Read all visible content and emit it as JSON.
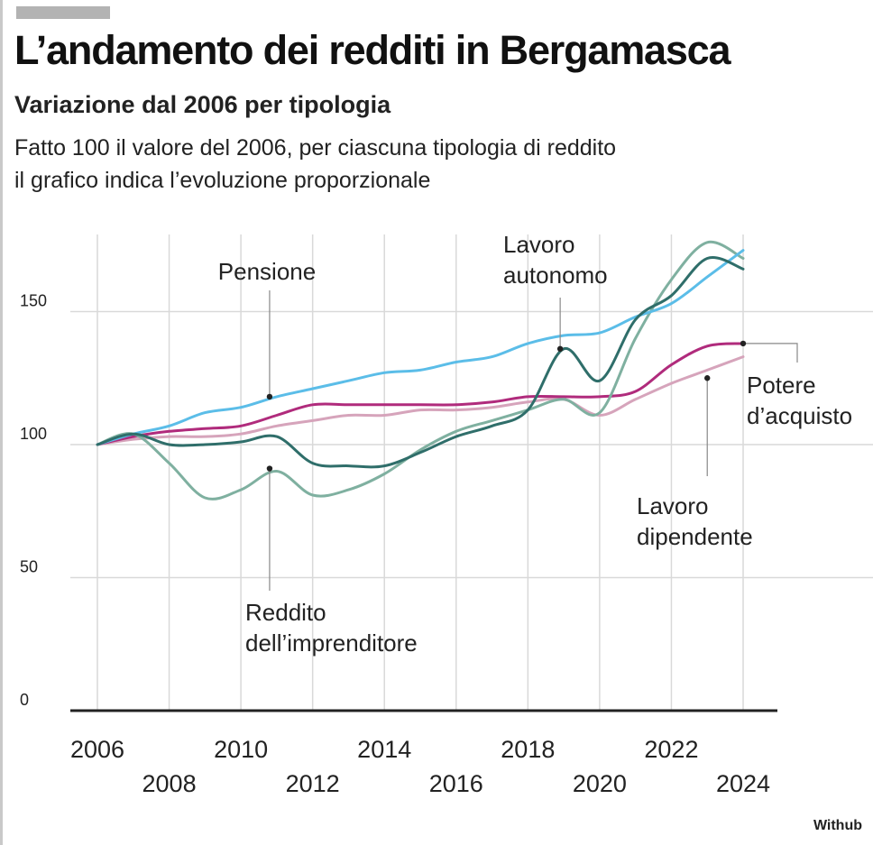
{
  "header": {
    "title": "L’andamento dei redditi in Bergamasca",
    "subtitle": "Variazione dal 2006 per tipologia",
    "note_line1": "Fatto 100 il valore del 2006, per ciascuna tipologia di reddito",
    "note_line2": "il grafico indica l’evoluzione proporzionale"
  },
  "credit": "Withub",
  "colors": {
    "pensione": "#5bbde8",
    "lavoro_autonomo": "#2f6e6a",
    "reddito_imprenditore": "#7fb0a0",
    "potere_acquisto": "#b02b7c",
    "lavoro_dipendente": "#d6a4bb",
    "grid": "#d9d9d9",
    "axis": "#222222"
  },
  "chart_data": {
    "type": "line",
    "title": "L’andamento dei redditi in Bergamasca",
    "subtitle": "Variazione dal 2006 per tipologia",
    "xlabel": "",
    "ylabel": "",
    "x_ticks": [
      2006,
      2008,
      2010,
      2012,
      2014,
      2016,
      2018,
      2020,
      2022,
      2024
    ],
    "y_ticks": [
      0,
      50,
      100,
      150
    ],
    "xlim": [
      2006,
      2024
    ],
    "ylim": [
      0,
      175
    ],
    "grid": true,
    "series": [
      {
        "key": "pensione",
        "x": [
          2006,
          2007,
          2008,
          2009,
          2010,
          2011,
          2012,
          2013,
          2014,
          2015,
          2016,
          2017,
          2018,
          2019,
          2020,
          2021,
          2022,
          2023,
          2024
        ],
        "values": [
          100,
          104,
          107,
          112,
          114,
          118,
          121,
          124,
          127,
          128,
          131,
          133,
          138,
          141,
          142,
          148,
          153,
          163,
          173
        ]
      },
      {
        "key": "lavoro_autonomo",
        "x": [
          2006,
          2007,
          2008,
          2009,
          2010,
          2011,
          2012,
          2013,
          2014,
          2015,
          2016,
          2017,
          2018,
          2019,
          2020,
          2021,
          2022,
          2023,
          2024
        ],
        "values": [
          100,
          104,
          100,
          100,
          101,
          103,
          93,
          92,
          92,
          97,
          103,
          107,
          113,
          136,
          124,
          147,
          156,
          170,
          166
        ]
      },
      {
        "key": "reddito_imprenditore",
        "x": [
          2006,
          2007,
          2008,
          2009,
          2010,
          2011,
          2012,
          2013,
          2014,
          2015,
          2016,
          2017,
          2018,
          2019,
          2020,
          2021,
          2022,
          2023,
          2024
        ],
        "values": [
          100,
          104,
          93,
          80,
          83,
          90,
          81,
          83,
          89,
          98,
          105,
          109,
          113,
          117,
          112,
          140,
          162,
          176,
          170
        ]
      },
      {
        "key": "potere_acquisto",
        "x": [
          2006,
          2007,
          2008,
          2009,
          2010,
          2011,
          2012,
          2013,
          2014,
          2015,
          2016,
          2017,
          2018,
          2019,
          2020,
          2021,
          2022,
          2023,
          2024
        ],
        "values": [
          100,
          103,
          105,
          106,
          107,
          111,
          115,
          115,
          115,
          115,
          115,
          116,
          118,
          118,
          118,
          120,
          130,
          137,
          138
        ]
      },
      {
        "key": "lavoro_dipendente",
        "x": [
          2006,
          2007,
          2008,
          2009,
          2010,
          2011,
          2012,
          2013,
          2014,
          2015,
          2016,
          2017,
          2018,
          2019,
          2020,
          2021,
          2022,
          2023,
          2024
        ],
        "values": [
          100,
          102,
          103,
          103,
          104,
          107,
          109,
          111,
          111,
          113,
          113,
          114,
          116,
          117,
          111,
          117,
          123,
          128,
          133
        ]
      }
    ],
    "annotations": [
      {
        "text": [
          "Pensione"
        ],
        "series": "pensione",
        "x": 2010.8,
        "y": 118
      },
      {
        "text": [
          "Lavoro",
          "autonomo"
        ],
        "series": "lavoro_autonomo",
        "x": 2018.9,
        "y": 136
      },
      {
        "text": [
          "Reddito",
          "dell’imprenditore"
        ],
        "series": "lavoro_autonomo",
        "x": 2010.8,
        "y": 91
      },
      {
        "text": [
          "Potere",
          "d’acquisto"
        ],
        "series": "potere_acquisto",
        "x": 2024,
        "y": 138
      },
      {
        "text": [
          "Lavoro",
          "dipendente"
        ],
        "series": "lavoro_dipendente",
        "x": 2023,
        "y": 125
      }
    ]
  }
}
